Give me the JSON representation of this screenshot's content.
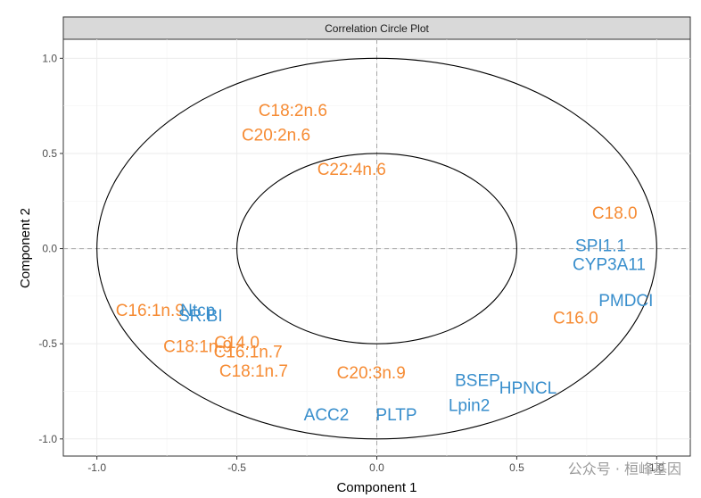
{
  "chart_data": {
    "type": "scatter",
    "title": "Correlation Circle Plot",
    "xlabel": "Component  1",
    "ylabel": "Component  2",
    "xlim": [
      -1.12,
      1.12
    ],
    "ylim": [
      -1.09,
      1.1
    ],
    "xticks": [
      -1.0,
      -0.5,
      0.0,
      0.5,
      1.0
    ],
    "xtick_labels": [
      "-1.0",
      "-0.5",
      "0.0",
      "0.5",
      "1.0"
    ],
    "yticks": [
      -1.0,
      -0.5,
      0.0,
      0.5,
      1.0
    ],
    "ytick_labels": [
      "-1.0",
      "-0.5",
      "0.0",
      "0.5",
      "1.0"
    ],
    "circles": [
      1.0,
      0.5
    ],
    "grid": true,
    "colors": {
      "orange": "#F68B33",
      "blue": "#388ECC"
    },
    "series": [
      {
        "name": "orange",
        "color": "#F68B33",
        "points": [
          {
            "label": "C18:2n.6",
            "x": -0.3,
            "y": 0.73
          },
          {
            "label": "C20:2n.6",
            "x": -0.36,
            "y": 0.6
          },
          {
            "label": "C22:4n.6",
            "x": -0.09,
            "y": 0.42
          },
          {
            "label": "C18.0",
            "x": 0.85,
            "y": 0.19
          },
          {
            "label": "C16.0",
            "x": 0.71,
            "y": -0.36
          },
          {
            "label": "C16:1n.9",
            "x": -0.81,
            "y": -0.32
          },
          {
            "label": "C18:1n.9",
            "x": -0.64,
            "y": -0.51
          },
          {
            "label": "C14.0",
            "x": -0.5,
            "y": -0.49
          },
          {
            "label": "C16:1n.7",
            "x": -0.46,
            "y": -0.54
          },
          {
            "label": "C18:1n.7",
            "x": -0.44,
            "y": -0.64
          },
          {
            "label": "C20:3n.9",
            "x": -0.02,
            "y": -0.65
          }
        ]
      },
      {
        "name": "blue",
        "color": "#388ECC",
        "points": [
          {
            "label": "Ntcp",
            "x": -0.64,
            "y": -0.32
          },
          {
            "label": "SR.BI",
            "x": -0.63,
            "y": -0.35
          },
          {
            "label": "SPI1.1",
            "x": 0.8,
            "y": 0.02
          },
          {
            "label": "CYP3A11",
            "x": 0.83,
            "y": -0.08
          },
          {
            "label": "PMDCI",
            "x": 0.89,
            "y": -0.27
          },
          {
            "label": "BSEP",
            "x": 0.36,
            "y": -0.69
          },
          {
            "label": "HPNCL",
            "x": 0.54,
            "y": -0.73
          },
          {
            "label": "Lpin2",
            "x": 0.33,
            "y": -0.82
          },
          {
            "label": "PLTP",
            "x": 0.07,
            "y": -0.87
          },
          {
            "label": "ACC2",
            "x": -0.18,
            "y": -0.87
          }
        ]
      }
    ]
  },
  "watermark": "公众号 · 桓峰基因"
}
